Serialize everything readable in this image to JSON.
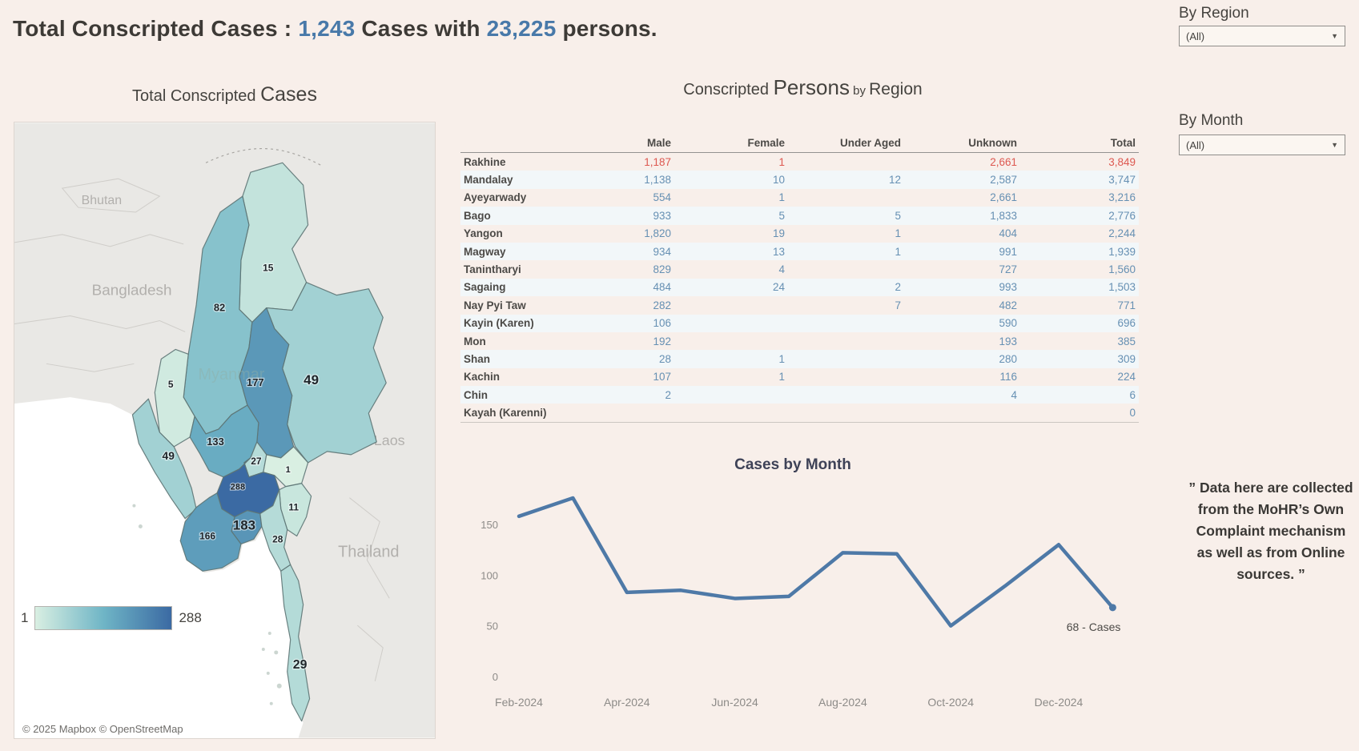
{
  "header": {
    "title_prefix": "Total Conscripted Cases : ",
    "cases_count": "1,243",
    "title_mid": " Cases with ",
    "persons_count": "23,225",
    "title_suffix": " persons."
  },
  "filters": {
    "region": {
      "label": "By Region",
      "value": "(All)"
    },
    "month": {
      "label": "By Month",
      "value": "(All)"
    }
  },
  "note": "” Data here are collected from the MoHR’s Own Complaint mechanism as well as from Online sources. ”",
  "colors": {
    "accent_blue": "#4879a9",
    "line_blue": "#4e79a7",
    "number_blue": "#6690b3",
    "highlight_red": "#dd5850",
    "map_low": "#d9efe2",
    "map_mid": "#6fb5c6",
    "map_high": "#3b6aa3"
  },
  "chart_data": [
    {
      "type": "line",
      "title": "Cases by Month",
      "x": [
        "Feb-2024",
        "Mar-2024",
        "Apr-2024",
        "May-2024",
        "Jun-2024",
        "Jul-2024",
        "Aug-2024",
        "Sep-2024",
        "Oct-2024",
        "Nov-2024",
        "Dec-2024",
        "Jan-2025"
      ],
      "values": [
        158,
        176,
        83,
        85,
        77,
        79,
        122,
        121,
        50,
        89,
        130,
        68
      ],
      "x_tick_labels": [
        "Feb-2024",
        "Apr-2024",
        "Jun-2024",
        "Aug-2024",
        "Oct-2024",
        "Dec-2024"
      ],
      "y_ticks": [
        0,
        50,
        100,
        150
      ],
      "ylim": [
        0,
        190
      ],
      "grid": false,
      "legend_position": "none",
      "annotation": "68 - Cases",
      "xlabel": "",
      "ylabel": ""
    },
    {
      "type": "table",
      "title": "Conscripted Persons by Region",
      "title_parts": [
        "Conscripted ",
        "Persons",
        " by ",
        "Region"
      ],
      "columns": [
        "Male",
        "Female",
        "Under Aged",
        "Unknown",
        "Total"
      ],
      "rows": [
        {
          "region": "Rakhine",
          "male": "1,187",
          "female": "1",
          "under_aged": "",
          "unknown": "2,661",
          "total": "3,849",
          "highlight": true
        },
        {
          "region": "Mandalay",
          "male": "1,138",
          "female": "10",
          "under_aged": "12",
          "unknown": "2,587",
          "total": "3,747",
          "highlight": false
        },
        {
          "region": "Ayeyarwady",
          "male": "554",
          "female": "1",
          "under_aged": "",
          "unknown": "2,661",
          "total": "3,216",
          "highlight": false
        },
        {
          "region": "Bago",
          "male": "933",
          "female": "5",
          "under_aged": "5",
          "unknown": "1,833",
          "total": "2,776",
          "highlight": false
        },
        {
          "region": "Yangon",
          "male": "1,820",
          "female": "19",
          "under_aged": "1",
          "unknown": "404",
          "total": "2,244",
          "highlight": false
        },
        {
          "region": "Magway",
          "male": "934",
          "female": "13",
          "under_aged": "1",
          "unknown": "991",
          "total": "1,939",
          "highlight": false
        },
        {
          "region": "Tanintharyi",
          "male": "829",
          "female": "4",
          "under_aged": "",
          "unknown": "727",
          "total": "1,560",
          "highlight": false
        },
        {
          "region": "Sagaing",
          "male": "484",
          "female": "24",
          "under_aged": "2",
          "unknown": "993",
          "total": "1,503",
          "highlight": false
        },
        {
          "region": "Nay Pyi Taw",
          "male": "282",
          "female": "",
          "under_aged": "7",
          "unknown": "482",
          "total": "771",
          "highlight": false
        },
        {
          "region": "Kayin (Karen)",
          "male": "106",
          "female": "",
          "under_aged": "",
          "unknown": "590",
          "total": "696",
          "highlight": false
        },
        {
          "region": "Mon",
          "male": "192",
          "female": "",
          "under_aged": "",
          "unknown": "193",
          "total": "385",
          "highlight": false
        },
        {
          "region": "Shan",
          "male": "28",
          "female": "1",
          "under_aged": "",
          "unknown": "280",
          "total": "309",
          "highlight": false
        },
        {
          "region": "Kachin",
          "male": "107",
          "female": "1",
          "under_aged": "",
          "unknown": "116",
          "total": "224",
          "highlight": false
        },
        {
          "region": "Chin",
          "male": "2",
          "female": "",
          "under_aged": "",
          "unknown": "4",
          "total": "6",
          "highlight": false
        },
        {
          "region": "Kayah (Karenni)",
          "male": "",
          "female": "",
          "under_aged": "",
          "unknown": "",
          "total": "0",
          "highlight": false
        }
      ]
    },
    {
      "type": "choropleth_map",
      "title": "Total Conscripted Cases",
      "title_parts": [
        "Total Conscripted ",
        "Cases"
      ],
      "legend": {
        "min": "1",
        "max": "288"
      },
      "attribution": "© 2025 Mapbox  © OpenStreetMap",
      "basemap_labels": [
        "Bhutan",
        "Bangladesh",
        "Myanmar",
        "Laos",
        "Thailand"
      ],
      "regions": [
        {
          "name": "Kachin",
          "cases": 15
        },
        {
          "name": "Sagaing",
          "cases": 82
        },
        {
          "name": "Chin",
          "cases": 5
        },
        {
          "name": "Rakhine",
          "cases": 49
        },
        {
          "name": "Shan",
          "cases": 49
        },
        {
          "name": "Mandalay",
          "cases": 177
        },
        {
          "name": "Magway",
          "cases": 133
        },
        {
          "name": "Nay Pyi Taw",
          "cases": 27
        },
        {
          "name": "Kayah (Karenni)",
          "cases": 1
        },
        {
          "name": "Bago",
          "cases": 288
        },
        {
          "name": "Kayin (Karen)",
          "cases": 11
        },
        {
          "name": "Yangon",
          "cases": 183
        },
        {
          "name": "Ayeyarwady",
          "cases": 166
        },
        {
          "name": "Mon",
          "cases": 28
        },
        {
          "name": "Tanintharyi",
          "cases": 29
        }
      ]
    }
  ]
}
